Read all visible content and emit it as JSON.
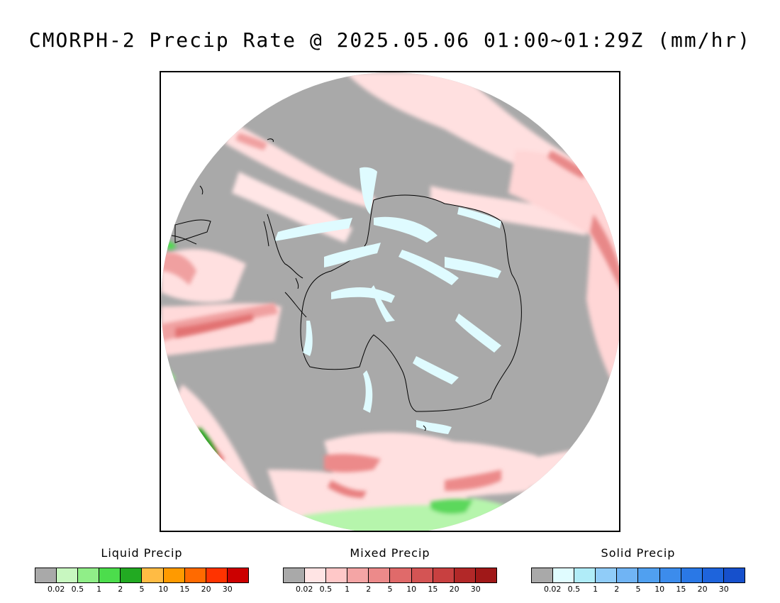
{
  "title": "CMORPH-2 Precip Rate @ 2025.05.06 01:00~01:29Z (mm/hr)",
  "legends": [
    {
      "name": "Liquid Precip",
      "colors": [
        "#a9a9a9",
        "#c8f7c0",
        "#90ee88",
        "#4cdd4c",
        "#22aa22",
        "#ffbb44",
        "#ff9a00",
        "#ff6a00",
        "#ff3300",
        "#cc0000"
      ],
      "ticks": [
        "0.02",
        "0.5",
        "1",
        "2",
        "5",
        "10",
        "15",
        "20",
        "30"
      ]
    },
    {
      "name": "Mixed Precip",
      "colors": [
        "#a9a9a9",
        "#ffe4e4",
        "#ffc8c8",
        "#f4a5a5",
        "#ec8a8a",
        "#e06a6a",
        "#d45454",
        "#c84040",
        "#b22828",
        "#a01818"
      ],
      "ticks": [
        "0.02",
        "0.5",
        "1",
        "2",
        "5",
        "10",
        "15",
        "20",
        "30"
      ]
    },
    {
      "name": "Solid Precip",
      "colors": [
        "#a9a9a9",
        "#e0fcff",
        "#b0ecf8",
        "#90ccf8",
        "#70b4f4",
        "#50a0f0",
        "#3c8cec",
        "#2a78e6",
        "#1e64dc",
        "#1650cc"
      ],
      "ticks": [
        "0.02",
        "0.5",
        "1",
        "2",
        "5",
        "10",
        "15",
        "20",
        "30"
      ]
    }
  ],
  "map": {
    "background_color": "#a9a9a9",
    "coastline_color": "#000000"
  }
}
